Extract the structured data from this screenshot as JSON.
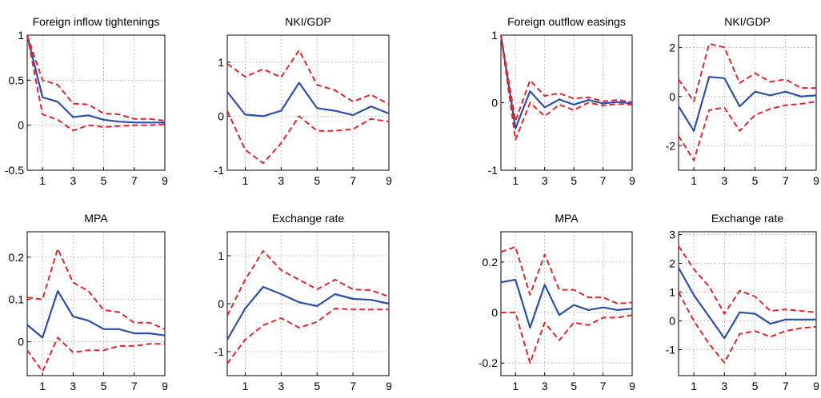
{
  "figure": {
    "background": "#ffffff"
  },
  "styles": {
    "median_color": "#2e4fa8",
    "band_color": "#e0262b",
    "grid_color": "#9a9a9a"
  },
  "chart_data": [
    {
      "type": "line",
      "title": "Foreign inflow tightenings",
      "x": [
        0,
        1,
        2,
        3,
        4,
        5,
        6,
        7,
        8,
        9
      ],
      "xticks": [
        1,
        3,
        5,
        7,
        9
      ],
      "xlim": [
        0,
        9
      ],
      "ylim": [
        -0.5,
        1
      ],
      "yticks": [
        -0.5,
        0,
        0.5,
        1
      ],
      "ytick_labels": [
        "-0.5",
        "0",
        "0.5",
        "1"
      ],
      "grid": true,
      "series": [
        {
          "role": "median",
          "values": [
            1.0,
            0.31,
            0.26,
            0.09,
            0.11,
            0.06,
            0.04,
            0.03,
            0.03,
            0.03
          ]
        },
        {
          "role": "upper",
          "values": [
            1.0,
            0.5,
            0.45,
            0.24,
            0.23,
            0.13,
            0.12,
            0.07,
            0.07,
            0.05
          ]
        },
        {
          "role": "lower",
          "values": [
            1.0,
            0.12,
            0.06,
            -0.06,
            0.0,
            -0.02,
            -0.01,
            0.0,
            0.0,
            0.01
          ]
        }
      ]
    },
    {
      "type": "line",
      "title": "NKI/GDP",
      "x": [
        0,
        1,
        2,
        3,
        4,
        5,
        6,
        7,
        8,
        9
      ],
      "xticks": [
        1,
        3,
        5,
        7,
        9
      ],
      "xlim": [
        0,
        9
      ],
      "ylim": [
        -1,
        1.5
      ],
      "yticks": [
        -1,
        0,
        1
      ],
      "ytick_labels": [
        "-1",
        "0",
        "1"
      ],
      "grid": true,
      "series": [
        {
          "role": "median",
          "values": [
            0.45,
            0.03,
            0.0,
            0.1,
            0.62,
            0.15,
            0.1,
            0.02,
            0.18,
            0.05
          ]
        },
        {
          "role": "upper",
          "values": [
            0.97,
            0.73,
            0.87,
            0.72,
            1.22,
            0.58,
            0.48,
            0.27,
            0.4,
            0.22
          ]
        },
        {
          "role": "lower",
          "values": [
            0.1,
            -0.62,
            -0.87,
            -0.5,
            0.0,
            -0.27,
            -0.27,
            -0.24,
            -0.05,
            -0.1
          ]
        }
      ]
    },
    {
      "type": "line",
      "title": "Foreign outflow easings",
      "x": [
        0,
        1,
        2,
        3,
        4,
        5,
        6,
        7,
        8,
        9
      ],
      "xticks": [
        1,
        3,
        5,
        7,
        9
      ],
      "xlim": [
        0,
        9
      ],
      "ylim": [
        -1,
        1
      ],
      "yticks": [
        -1,
        0,
        1
      ],
      "ytick_labels": [
        "-1",
        "0",
        "1"
      ],
      "grid": true,
      "series": [
        {
          "role": "median",
          "values": [
            1.0,
            -0.38,
            0.17,
            -0.07,
            0.05,
            -0.03,
            0.04,
            -0.01,
            0.01,
            -0.01
          ]
        },
        {
          "role": "upper",
          "values": [
            1.0,
            -0.27,
            0.33,
            0.1,
            0.14,
            0.06,
            0.08,
            0.02,
            0.04,
            0.01
          ]
        },
        {
          "role": "lower",
          "values": [
            1.0,
            -0.55,
            0.0,
            -0.2,
            -0.03,
            -0.11,
            0.0,
            -0.04,
            -0.02,
            -0.03
          ]
        }
      ]
    },
    {
      "type": "line",
      "title": "NKI/GDP",
      "x": [
        0,
        1,
        2,
        3,
        4,
        5,
        6,
        7,
        8,
        9
      ],
      "xticks": [
        1,
        3,
        5,
        7,
        9
      ],
      "xlim": [
        0,
        9
      ],
      "ylim": [
        -3,
        2.5
      ],
      "yticks": [
        -2,
        0,
        2
      ],
      "ytick_labels": [
        "-2",
        "0",
        "2"
      ],
      "grid": true,
      "series": [
        {
          "role": "median",
          "values": [
            -0.4,
            -1.4,
            0.8,
            0.75,
            -0.4,
            0.2,
            0.05,
            0.2,
            0.0,
            0.05
          ]
        },
        {
          "role": "upper",
          "values": [
            0.7,
            -0.2,
            2.15,
            2.0,
            0.55,
            0.95,
            0.6,
            0.7,
            0.35,
            0.35
          ]
        },
        {
          "role": "lower",
          "values": [
            -1.6,
            -2.6,
            -0.55,
            -0.45,
            -1.4,
            -0.75,
            -0.5,
            -0.35,
            -0.3,
            -0.2
          ]
        }
      ]
    },
    {
      "type": "line",
      "title": "MPA",
      "x": [
        0,
        1,
        2,
        3,
        4,
        5,
        6,
        7,
        8,
        9
      ],
      "xticks": [
        1,
        3,
        5,
        7,
        9
      ],
      "xlim": [
        0,
        9
      ],
      "ylim": [
        -0.08,
        0.26
      ],
      "yticks": [
        0,
        0.1,
        0.2
      ],
      "ytick_labels": [
        "0",
        "0.1",
        "0.2"
      ],
      "grid": true,
      "series": [
        {
          "role": "median",
          "values": [
            0.04,
            0.01,
            0.12,
            0.06,
            0.05,
            0.03,
            0.03,
            0.02,
            0.02,
            0.015
          ]
        },
        {
          "role": "upper",
          "values": [
            0.105,
            0.1,
            0.22,
            0.14,
            0.12,
            0.075,
            0.07,
            0.045,
            0.045,
            0.03
          ]
        },
        {
          "role": "lower",
          "values": [
            -0.02,
            -0.07,
            0.01,
            -0.025,
            -0.02,
            -0.02,
            -0.01,
            -0.01,
            -0.005,
            -0.005
          ]
        }
      ]
    },
    {
      "type": "line",
      "title": "Exchange rate",
      "x": [
        0,
        1,
        2,
        3,
        4,
        5,
        6,
        7,
        8,
        9
      ],
      "xticks": [
        1,
        3,
        5,
        7,
        9
      ],
      "xlim": [
        0,
        9
      ],
      "ylim": [
        -1.5,
        1.5
      ],
      "yticks": [
        -1,
        0,
        1
      ],
      "ytick_labels": [
        "-1",
        "0",
        "1"
      ],
      "grid": true,
      "series": [
        {
          "role": "median",
          "values": [
            -0.75,
            -0.1,
            0.35,
            0.2,
            0.03,
            -0.05,
            0.2,
            0.1,
            0.08,
            0.0
          ]
        },
        {
          "role": "upper",
          "values": [
            -0.25,
            0.5,
            1.1,
            0.7,
            0.5,
            0.3,
            0.5,
            0.3,
            0.28,
            0.15
          ]
        },
        {
          "role": "lower",
          "values": [
            -1.25,
            -0.75,
            -0.45,
            -0.3,
            -0.5,
            -0.38,
            -0.1,
            -0.12,
            -0.12,
            -0.12
          ]
        }
      ]
    },
    {
      "type": "line",
      "title": "MPA",
      "x": [
        0,
        1,
        2,
        3,
        4,
        5,
        6,
        7,
        8,
        9
      ],
      "xticks": [
        1,
        3,
        5,
        7,
        9
      ],
      "xlim": [
        0,
        9
      ],
      "ylim": [
        -0.25,
        0.32
      ],
      "yticks": [
        -0.2,
        0,
        0.2
      ],
      "ytick_labels": [
        "-0.2",
        "0",
        "0.2"
      ],
      "grid": true,
      "series": [
        {
          "role": "median",
          "values": [
            0.12,
            0.13,
            -0.06,
            0.11,
            -0.01,
            0.03,
            0.01,
            0.02,
            0.01,
            0.015
          ]
        },
        {
          "role": "upper",
          "values": [
            0.24,
            0.26,
            0.07,
            0.23,
            0.09,
            0.09,
            0.06,
            0.06,
            0.035,
            0.04
          ]
        },
        {
          "role": "lower",
          "values": [
            0.0,
            0.0,
            -0.2,
            -0.04,
            -0.11,
            -0.04,
            -0.05,
            -0.02,
            -0.02,
            -0.01
          ]
        }
      ]
    },
    {
      "type": "line",
      "title": "Exchange rate",
      "x": [
        0,
        1,
        2,
        3,
        4,
        5,
        6,
        7,
        8,
        9
      ],
      "xticks": [
        1,
        3,
        5,
        7,
        9
      ],
      "xlim": [
        0,
        9
      ],
      "ylim": [
        -1.9,
        3.1
      ],
      "yticks": [
        -1,
        0,
        1,
        2,
        3
      ],
      "ytick_labels": [
        "-1",
        "0",
        "1",
        "2",
        "3"
      ],
      "grid": true,
      "series": [
        {
          "role": "median",
          "values": [
            1.85,
            0.9,
            0.15,
            -0.6,
            0.3,
            0.25,
            -0.1,
            0.05,
            0.05,
            0.05
          ]
        },
        {
          "role": "upper",
          "values": [
            2.6,
            1.8,
            1.2,
            0.25,
            1.05,
            0.85,
            0.35,
            0.4,
            0.35,
            0.3
          ]
        },
        {
          "role": "lower",
          "values": [
            1.0,
            0.0,
            -0.8,
            -1.45,
            -0.45,
            -0.35,
            -0.55,
            -0.35,
            -0.25,
            -0.2
          ]
        }
      ]
    }
  ]
}
